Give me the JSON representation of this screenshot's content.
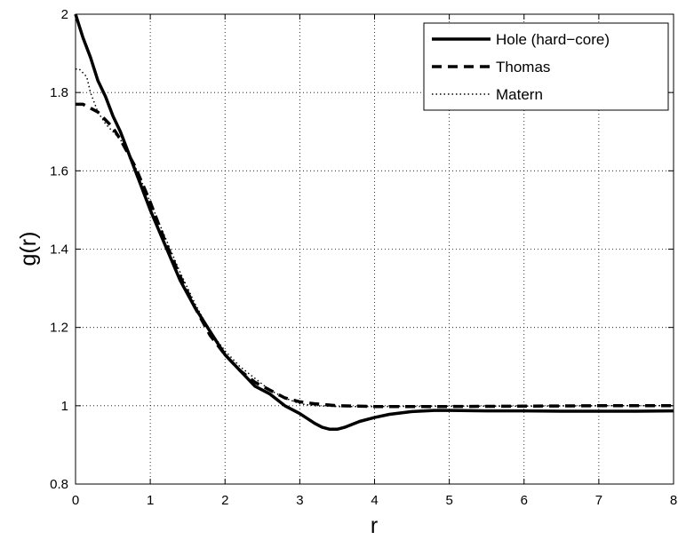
{
  "chart_data": {
    "type": "line",
    "xlabel": "r",
    "ylabel": "g(r)",
    "xlim": [
      0,
      8
    ],
    "ylim": [
      0.8,
      2
    ],
    "xticks": [
      "0",
      "1",
      "2",
      "3",
      "4",
      "5",
      "6",
      "7",
      "8"
    ],
    "yticks": [
      "0.8",
      "1",
      "1.2",
      "1.4",
      "1.6",
      "1.8",
      "2"
    ],
    "grid": true,
    "legend_position": "top-right",
    "series": [
      {
        "name": "Hole (hard−core)",
        "style": "solid",
        "x": [
          0.0,
          0.1,
          0.2,
          0.3,
          0.4,
          0.5,
          0.6,
          0.8,
          1.0,
          1.2,
          1.4,
          1.6,
          1.8,
          2.0,
          2.2,
          2.4,
          2.6,
          2.8,
          3.0,
          3.2,
          3.3,
          3.4,
          3.5,
          3.6,
          3.8,
          4.0,
          4.2,
          4.5,
          4.8,
          5.0,
          5.5,
          6.0,
          6.5,
          7.0,
          7.5,
          8.0
        ],
        "y": [
          2.0,
          1.94,
          1.89,
          1.83,
          1.79,
          1.74,
          1.7,
          1.6,
          1.5,
          1.41,
          1.32,
          1.25,
          1.19,
          1.13,
          1.09,
          1.05,
          1.03,
          1.0,
          0.98,
          0.955,
          0.945,
          0.94,
          0.94,
          0.945,
          0.96,
          0.97,
          0.978,
          0.985,
          0.988,
          0.988,
          0.987,
          0.987,
          0.986,
          0.986,
          0.986,
          0.987
        ]
      },
      {
        "name": "Thomas",
        "style": "dashed",
        "x": [
          0.0,
          0.1,
          0.2,
          0.3,
          0.4,
          0.5,
          0.6,
          0.8,
          1.0,
          1.2,
          1.4,
          1.6,
          1.8,
          2.0,
          2.2,
          2.4,
          2.6,
          2.8,
          3.0,
          3.2,
          3.5,
          4.0,
          5.0,
          6.0,
          7.0,
          8.0
        ],
        "y": [
          1.77,
          1.77,
          1.76,
          1.75,
          1.73,
          1.71,
          1.68,
          1.61,
          1.52,
          1.42,
          1.33,
          1.25,
          1.18,
          1.13,
          1.09,
          1.06,
          1.04,
          1.02,
          1.01,
          1.005,
          1.0,
          0.998,
          0.998,
          0.999,
          1.0,
          1.0
        ]
      },
      {
        "name": "Matern",
        "style": "dotted",
        "x": [
          0.0,
          0.05,
          0.1,
          0.15,
          0.2,
          0.3,
          0.4,
          0.5,
          0.6,
          0.8,
          1.0,
          1.2,
          1.4,
          1.6,
          1.8,
          2.0,
          2.2,
          2.4,
          2.6,
          2.8,
          3.0,
          3.2,
          3.5,
          4.0,
          5.0,
          6.0,
          7.0,
          8.0
        ],
        "y": [
          1.86,
          1.86,
          1.85,
          1.84,
          1.8,
          1.75,
          1.72,
          1.7,
          1.68,
          1.61,
          1.52,
          1.43,
          1.34,
          1.26,
          1.19,
          1.14,
          1.1,
          1.07,
          1.04,
          1.02,
          1.005,
          1.0,
          0.998,
          0.998,
          0.999,
          0.999,
          1.0,
          1.0
        ]
      }
    ]
  }
}
